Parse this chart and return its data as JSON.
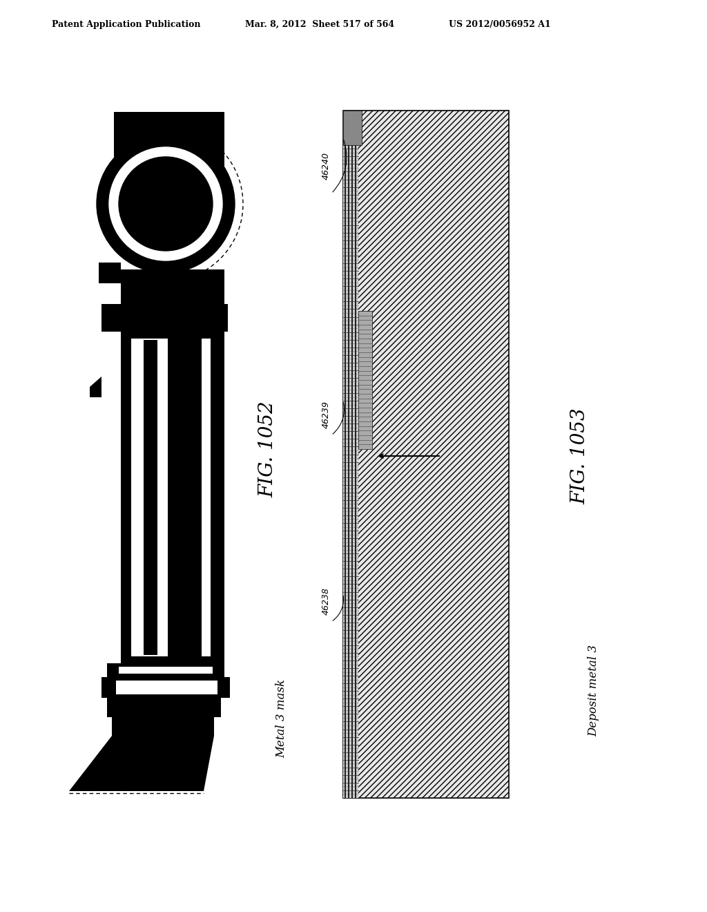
{
  "bg_color": "#ffffff",
  "header_left": "Patent Application Publication",
  "header_mid": "Mar. 8, 2012  Sheet 517 of 564",
  "header_right": "US 2012/0056952 A1",
  "fig1_label": "FIG. 1052",
  "fig2_label": "FIG. 1053",
  "caption1": "Metal 3 mask",
  "caption2": "Deposit metal 3",
  "label_46240": "46240",
  "label_46239": "46239",
  "label_46238": "46238"
}
